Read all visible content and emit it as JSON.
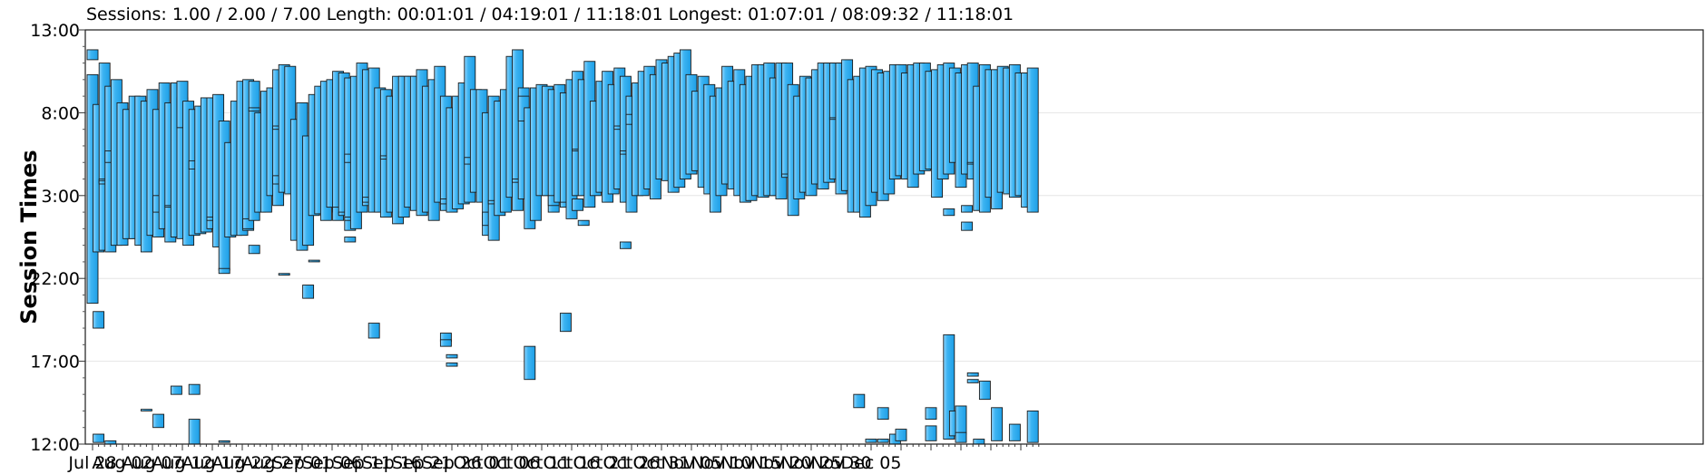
{
  "header": {
    "stats_text": "Sessions: 1.00 / 2.00 / 7.00 Length: 00:01:01 / 04:19:01 / 11:18:01 Longest: 01:07:01 / 08:09:32 / 11:18:01"
  },
  "chart_data": {
    "type": "bar",
    "orientation": "floating-range",
    "title": "",
    "xlabel": "",
    "ylabel": "Session Times",
    "x_tick_labels": [
      "Jul 28",
      "Aug 02",
      "Aug 07",
      "Aug 12",
      "Aug 17",
      "Aug 22",
      "Aug 27",
      "Sep 01",
      "Sep 06",
      "Sep 11",
      "Sep 16",
      "Sep 21",
      "Sep 26",
      "Oct 01",
      "Oct 06",
      "Oct 11",
      "Oct 16",
      "Oct 21",
      "Oct 26",
      "Oct 31",
      "Nov 05",
      "Nov 10",
      "Nov 15",
      "Nov 20",
      "Nov 25",
      "Nov 30",
      "Dec 05"
    ],
    "y_tick_labels": [
      "13:00",
      "8:00",
      "3:00",
      "22:00",
      "17:00",
      "12:00"
    ],
    "y_axis_note": "time of day; axis runs from 12:00 (bottom) through midnight to 13:00 (top)",
    "grid": true,
    "bar_color": "#3db4f2",
    "bar_edge_color": "#1a1a1a",
    "days": [
      [
        [
          20.5,
          34.3
        ],
        [
          35.2,
          35.8
        ]
      ],
      [
        [
          23.6,
          32.5
        ],
        [
          19.0,
          20.0
        ],
        [
          12.1,
          12.6
        ]
      ],
      [
        [
          23.7,
          35.0
        ],
        [
          27.8,
          28.0
        ],
        [
          27.7,
          27.9
        ]
      ],
      [
        [
          23.6,
          33.6
        ],
        [
          29.0,
          29.7
        ],
        [
          12.0,
          12.2
        ]
      ],
      [
        [
          24.0,
          34.0
        ]
      ],
      [
        [
          24.0,
          32.6
        ]
      ],
      [
        [
          24.4,
          32.2
        ]
      ],
      [
        [
          24.4,
          33.0
        ]
      ],
      [
        [
          24.0,
          33.0
        ]
      ],
      [
        [
          23.6,
          32.7
        ],
        [
          14.0,
          14.1
        ]
      ],
      [
        [
          24.6,
          33.4
        ]
      ],
      [
        [
          24.5,
          32.2
        ],
        [
          13.0,
          13.8
        ],
        [
          26.0,
          27.0
        ]
      ],
      [
        [
          25.0,
          33.8
        ]
      ],
      [
        [
          24.2,
          32.6
        ],
        [
          26.3,
          26.4
        ]
      ],
      [
        [
          24.5,
          33.8
        ],
        [
          15.0,
          15.5
        ]
      ],
      [
        [
          24.4,
          32.9
        ],
        [
          31.1,
          33.9
        ]
      ],
      [
        [
          24.0,
          32.7
        ]
      ],
      [
        [
          24.6,
          32.2
        ],
        [
          12.0,
          13.5
        ],
        [
          15.0,
          15.6
        ],
        [
          28.6,
          29.1
        ]
      ],
      [
        [
          24.7,
          32.4
        ]
      ],
      [
        [
          24.8,
          32.9
        ]
      ],
      [
        [
          25.0,
          32.9
        ],
        [
          25.5,
          25.7
        ]
      ],
      [
        [
          23.9,
          33.1
        ]
      ],
      [
        [
          22.5,
          31.5
        ],
        [
          22.3,
          22.6
        ],
        [
          12.1,
          12.2
        ]
      ],
      [
        [
          24.5,
          30.2
        ]
      ],
      [
        [
          24.6,
          32.7
        ]
      ],
      [
        [
          24.6,
          33.9
        ]
      ],
      [
        [
          24.9,
          34.0
        ],
        [
          25.0,
          25.6
        ]
      ],
      [
        [
          25.5,
          33.9
        ],
        [
          23.5,
          24.0
        ],
        [
          32.1,
          32.3
        ]
      ],
      [
        [
          26.0,
          32.0
        ]
      ],
      [
        [
          26.0,
          33.3
        ]
      ],
      [
        [
          27.0,
          33.5
        ]
      ],
      [
        [
          26.4,
          34.6
        ],
        [
          27.7,
          28.2
        ],
        [
          31.0,
          31.2
        ]
      ],
      [
        [
          27.2,
          34.9
        ],
        [
          22.2,
          22.3
        ]
      ],
      [
        [
          27.1,
          34.8
        ]
      ],
      [
        [
          24.3,
          31.6
        ]
      ],
      [
        [
          23.7,
          32.6
        ]
      ],
      [
        [
          24.0,
          30.6
        ],
        [
          20.8,
          21.6
        ]
      ],
      [
        [
          25.8,
          33.1
        ],
        [
          23.0,
          23.1
        ]
      ],
      [
        [
          25.9,
          33.6
        ]
      ],
      [
        [
          25.5,
          33.9
        ]
      ],
      [
        [
          26.3,
          34.0
        ]
      ],
      [
        [
          26.0,
          34.5
        ],
        [
          25.5,
          26.3
        ]
      ],
      [
        [
          25.9,
          34.4
        ],
        [
          25.8,
          26.0
        ]
      ],
      [
        [
          24.9,
          34.1
        ],
        [
          24.2,
          24.5
        ],
        [
          25.5,
          25.7
        ],
        [
          29.0,
          29.5
        ]
      ],
      [
        [
          25.0,
          34.2
        ]
      ],
      [
        [
          26.0,
          35.0
        ]
      ],
      [
        [
          26.4,
          34.6
        ],
        [
          26.6,
          26.9
        ]
      ],
      [
        [
          26.0,
          34.7
        ],
        [
          18.4,
          19.3
        ]
      ],
      [
        [
          26.0,
          33.5
        ]
      ],
      [
        [
          25.7,
          33.4
        ],
        [
          29.2,
          29.4
        ]
      ],
      [
        [
          26.0,
          33.0
        ]
      ],
      [
        [
          25.3,
          34.2
        ]
      ],
      [
        [
          25.7,
          34.2
        ]
      ],
      [
        [
          26.3,
          34.2
        ]
      ],
      [
        [
          26.1,
          34.2
        ]
      ],
      [
        [
          25.8,
          34.6
        ]
      ],
      [
        [
          26.0,
          33.6
        ]
      ],
      [
        [
          25.5,
          34.0
        ]
      ],
      [
        [
          26.6,
          34.8
        ]
      ],
      [
        [
          26.1,
          33.0
        ],
        [
          18.2,
          18.7
        ],
        [
          17.9,
          18.3
        ],
        [
          26.5,
          26.8
        ]
      ],
      [
        [
          26.0,
          32.3
        ],
        [
          16.7,
          16.9
        ],
        [
          17.2,
          17.4
        ]
      ],
      [
        [
          26.2,
          33.0
        ]
      ],
      [
        [
          26.5,
          33.8
        ]
      ],
      [
        [
          26.6,
          35.4
        ],
        [
          28.9,
          29.3
        ]
      ],
      [
        [
          27.2,
          33.4
        ]
      ],
      [
        [
          26.6,
          33.4
        ]
      ],
      [
        [
          24.6,
          32.0
        ],
        [
          25.2,
          26.0
        ]
      ],
      [
        [
          24.3,
          33.0
        ],
        [
          26.5,
          26.7
        ]
      ],
      [
        [
          25.8,
          32.7
        ]
      ],
      [
        [
          26.0,
          33.4
        ]
      ],
      [
        [
          26.9,
          35.4
        ]
      ],
      [
        [
          26.1,
          35.8
        ],
        [
          27.8,
          28.0
        ]
      ],
      [
        [
          26.8,
          33.5
        ],
        [
          31.5,
          33.0
        ]
      ],
      [
        [
          25.0,
          32.3
        ],
        [
          15.9,
          17.9
        ]
      ],
      [
        [
          25.5,
          33.5
        ]
      ],
      [
        [
          27.0,
          33.7
        ]
      ],
      [
        [
          27.0,
          33.6
        ]
      ],
      [
        [
          26.0,
          33.4
        ],
        [
          26.4,
          27.0
        ]
      ],
      [
        [
          26.6,
          33.7
        ]
      ],
      [
        [
          26.5,
          33.2
        ],
        [
          18.8,
          19.9
        ],
        [
          26.3,
          26.6
        ]
      ],
      [
        [
          25.6,
          34.0
        ]
      ],
      [
        [
          27.0,
          34.5
        ],
        [
          29.7,
          29.8
        ],
        [
          26.1,
          26.8
        ]
      ],
      [
        [
          27.0,
          34.0
        ],
        [
          25.2,
          25.5
        ]
      ],
      [
        [
          26.3,
          35.1
        ]
      ],
      [
        [
          27.0,
          32.7
        ]
      ],
      [
        [
          27.2,
          33.9
        ]
      ],
      [
        [
          26.6,
          34.5
        ]
      ],
      [
        [
          27.1,
          33.7
        ]
      ],
      [
        [
          27.4,
          34.7
        ],
        [
          31.0,
          31.2
        ]
      ],
      [
        [
          26.6,
          34.2
        ],
        [
          23.8,
          24.2
        ],
        [
          29.5,
          29.7
        ]
      ],
      [
        [
          26.0,
          33.0
        ],
        [
          31.3,
          31.9
        ]
      ],
      [
        [
          27.0,
          33.8
        ]
      ],
      [
        [
          27.0,
          34.5
        ]
      ],
      [
        [
          27.4,
          34.8
        ]
      ],
      [
        [
          26.8,
          34.3
        ]
      ],
      [
        [
          28.0,
          35.2
        ]
      ],
      [
        [
          27.9,
          35.0
        ]
      ],
      [
        [
          27.2,
          35.4
        ]
      ],
      [
        [
          27.5,
          35.6
        ]
      ],
      [
        [
          28.0,
          35.8
        ]
      ],
      [
        [
          28.3,
          34.3
        ]
      ],
      [
        [
          28.5,
          33.3
        ]
      ],
      [
        [
          27.5,
          34.2
        ]
      ],
      [
        [
          27.1,
          33.7
        ]
      ],
      [
        [
          26.0,
          33.0
        ]
      ],
      [
        [
          27.0,
          33.5
        ]
      ],
      [
        [
          27.7,
          34.8
        ]
      ],
      [
        [
          27.4,
          33.9
        ]
      ],
      [
        [
          27.0,
          34.6
        ]
      ],
      [
        [
          26.6,
          33.7
        ]
      ],
      [
        [
          26.7,
          34.2
        ]
      ],
      [
        [
          27.0,
          34.9
        ]
      ],
      [
        [
          26.9,
          34.9
        ]
      ],
      [
        [
          27.0,
          35.0
        ]
      ],
      [
        [
          27.0,
          34.1
        ]
      ],
      [
        [
          26.8,
          35.0
        ]
      ],
      [
        [
          28.2,
          35.0
        ],
        [
          28.1,
          28.3
        ]
      ],
      [
        [
          25.8,
          33.7
        ]
      ],
      [
        [
          26.8,
          33.0
        ]
      ],
      [
        [
          27.2,
          34.2
        ]
      ],
      [
        [
          27.0,
          34.1
        ]
      ],
      [
        [
          27.7,
          34.6
        ]
      ],
      [
        [
          27.4,
          35.0
        ]
      ],
      [
        [
          27.8,
          35.0
        ]
      ],
      [
        [
          28.0,
          35.0
        ],
        [
          31.6,
          31.7
        ]
      ],
      [
        [
          27.1,
          35.0
        ]
      ],
      [
        [
          27.3,
          35.2
        ]
      ],
      [
        [
          26.0,
          34.0
        ]
      ],
      [
        [
          26.0,
          34.2
        ],
        [
          14.2,
          15.0
        ]
      ],
      [
        [
          25.7,
          34.7
        ]
      ],
      [
        [
          26.4,
          34.8
        ],
        [
          12.1,
          12.3
        ]
      ],
      [
        [
          27.2,
          34.6
        ]
      ],
      [
        [
          26.7,
          34.4
        ],
        [
          13.5,
          14.2
        ],
        [
          12.1,
          12.3
        ]
      ],
      [
        [
          27.1,
          34.5
        ]
      ],
      [
        [
          28.0,
          34.9
        ],
        [
          12.0,
          12.6
        ]
      ],
      [
        [
          28.2,
          34.9
        ],
        [
          12.2,
          12.9
        ]
      ],
      [
        [
          28.0,
          34.4
        ]
      ],
      [
        [
          27.5,
          34.9
        ]
      ],
      [
        [
          28.3,
          35.0
        ]
      ],
      [
        [
          28.5,
          35.0
        ]
      ],
      [
        [
          28.6,
          34.5
        ],
        [
          13.5,
          14.2
        ],
        [
          12.2,
          13.1
        ]
      ],
      [
        [
          26.9,
          34.6
        ]
      ],
      [
        [
          28.0,
          34.9
        ]
      ],
      [
        [
          28.3,
          35.0
        ],
        [
          25.8,
          26.2
        ],
        [
          12.3,
          18.6
        ]
      ],
      [
        [
          29.0,
          34.7
        ],
        [
          12.5,
          14.0
        ]
      ],
      [
        [
          27.5,
          34.4
        ],
        [
          12.6,
          14.3
        ],
        [
          12.1,
          12.7
        ]
      ],
      [
        [
          28.3,
          34.9
        ],
        [
          24.9,
          25.4
        ],
        [
          26.0,
          26.4
        ]
      ],
      [
        [
          28.0,
          35.0
        ],
        [
          28.9,
          29.0
        ],
        [
          15.7,
          15.9
        ],
        [
          16.1,
          16.3
        ]
      ],
      [
        [
          26.1,
          33.6
        ],
        [
          12.0,
          12.3
        ]
      ],
      [
        [
          26.0,
          34.9
        ],
        [
          14.7,
          15.8
        ]
      ],
      [
        [
          26.9,
          34.6
        ]
      ],
      [
        [
          26.2,
          34.6
        ],
        [
          12.2,
          14.2
        ]
      ],
      [
        [
          27.2,
          34.8
        ]
      ],
      [
        [
          27.1,
          34.7
        ]
      ],
      [
        [
          26.9,
          34.9
        ],
        [
          12.2,
          13.2
        ]
      ],
      [
        [
          27.0,
          34.4
        ]
      ],
      [
        [
          26.3,
          34.4
        ]
      ],
      [
        [
          26.0,
          34.7
        ],
        [
          12.1,
          14.0
        ]
      ]
    ]
  }
}
